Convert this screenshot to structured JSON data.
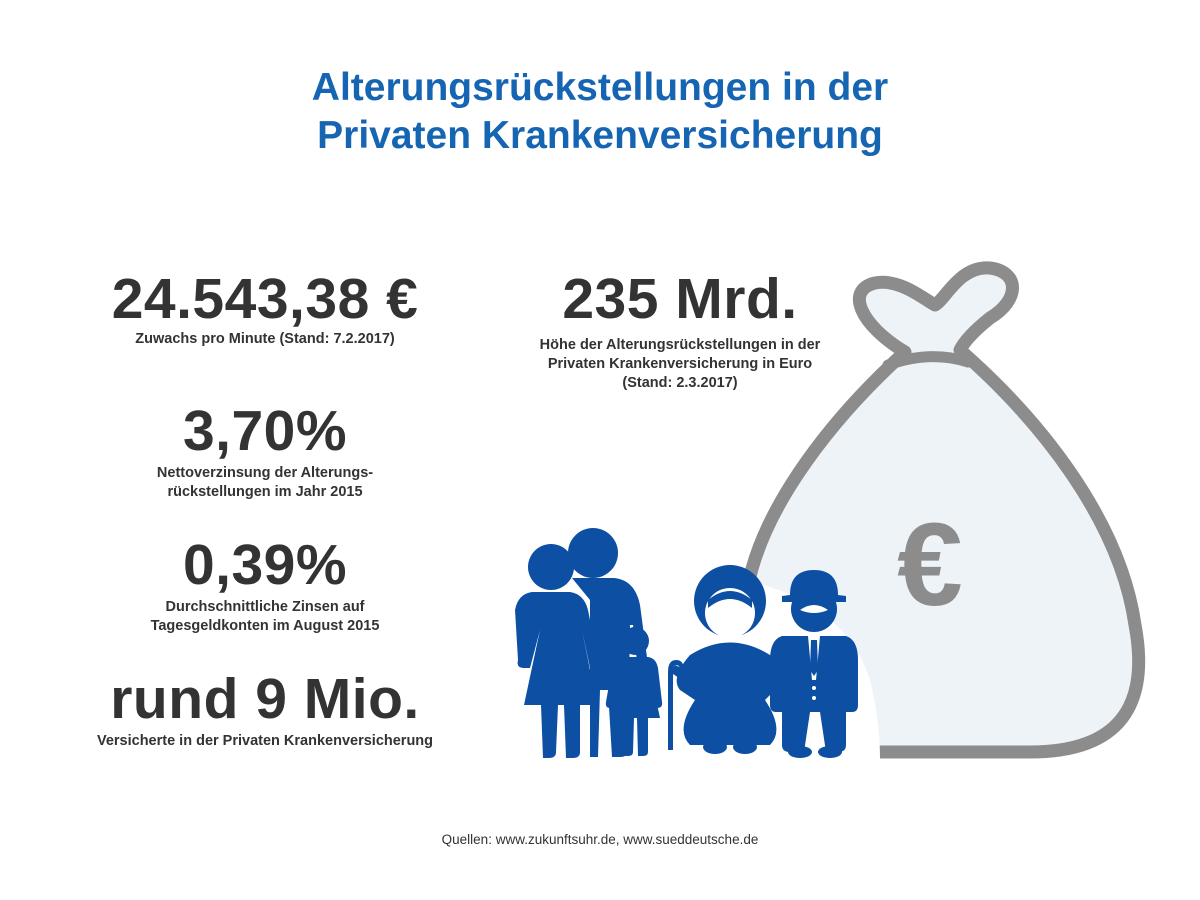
{
  "title": {
    "line1": "Alterungsrückstellungen in der",
    "line2": "Privaten Krankenversicherung"
  },
  "stats": {
    "growth": {
      "value": "24.543,38 €",
      "label": "Zuwachs pro Minute (Stand: 7.2.2017)"
    },
    "total": {
      "value": "235 Mrd.",
      "label_lines": [
        "Höhe der Alterungsrückstellungen in der",
        "Privaten Krankenversicherung in Euro",
        "(Stand: 2.3.2017)"
      ]
    },
    "net_interest": {
      "value": "3,70%",
      "label_lines": [
        "Nettoverzinsung der Alterungs-",
        "rückstellungen im Jahr 2015"
      ]
    },
    "avg_interest": {
      "value": "0,39%",
      "label_lines": [
        "Durchschnittliche Zinsen auf",
        "Tagesgeldkonten im August 2015"
      ]
    },
    "insured": {
      "value": "rund 9 Mio.",
      "label": "Versicherte in der Privaten Krankenversicherung"
    }
  },
  "illustration": {
    "bag_symbol": "€",
    "icons": [
      "money-bag-icon",
      "family-icon",
      "woman-icon",
      "man-icon",
      "child-icon",
      "grandmother-icon",
      "grandfather-icon",
      "walking-cane-icon"
    ]
  },
  "colors": {
    "title_blue": "#1565b3",
    "figure_blue": "#0d4fa3",
    "bag_fill": "#eef3f8",
    "bag_stroke": "#8c8c8c",
    "text_dark": "#333333"
  },
  "source": "Quellen: www.zukunftsuhr.de, www.sueddeutsche.de"
}
